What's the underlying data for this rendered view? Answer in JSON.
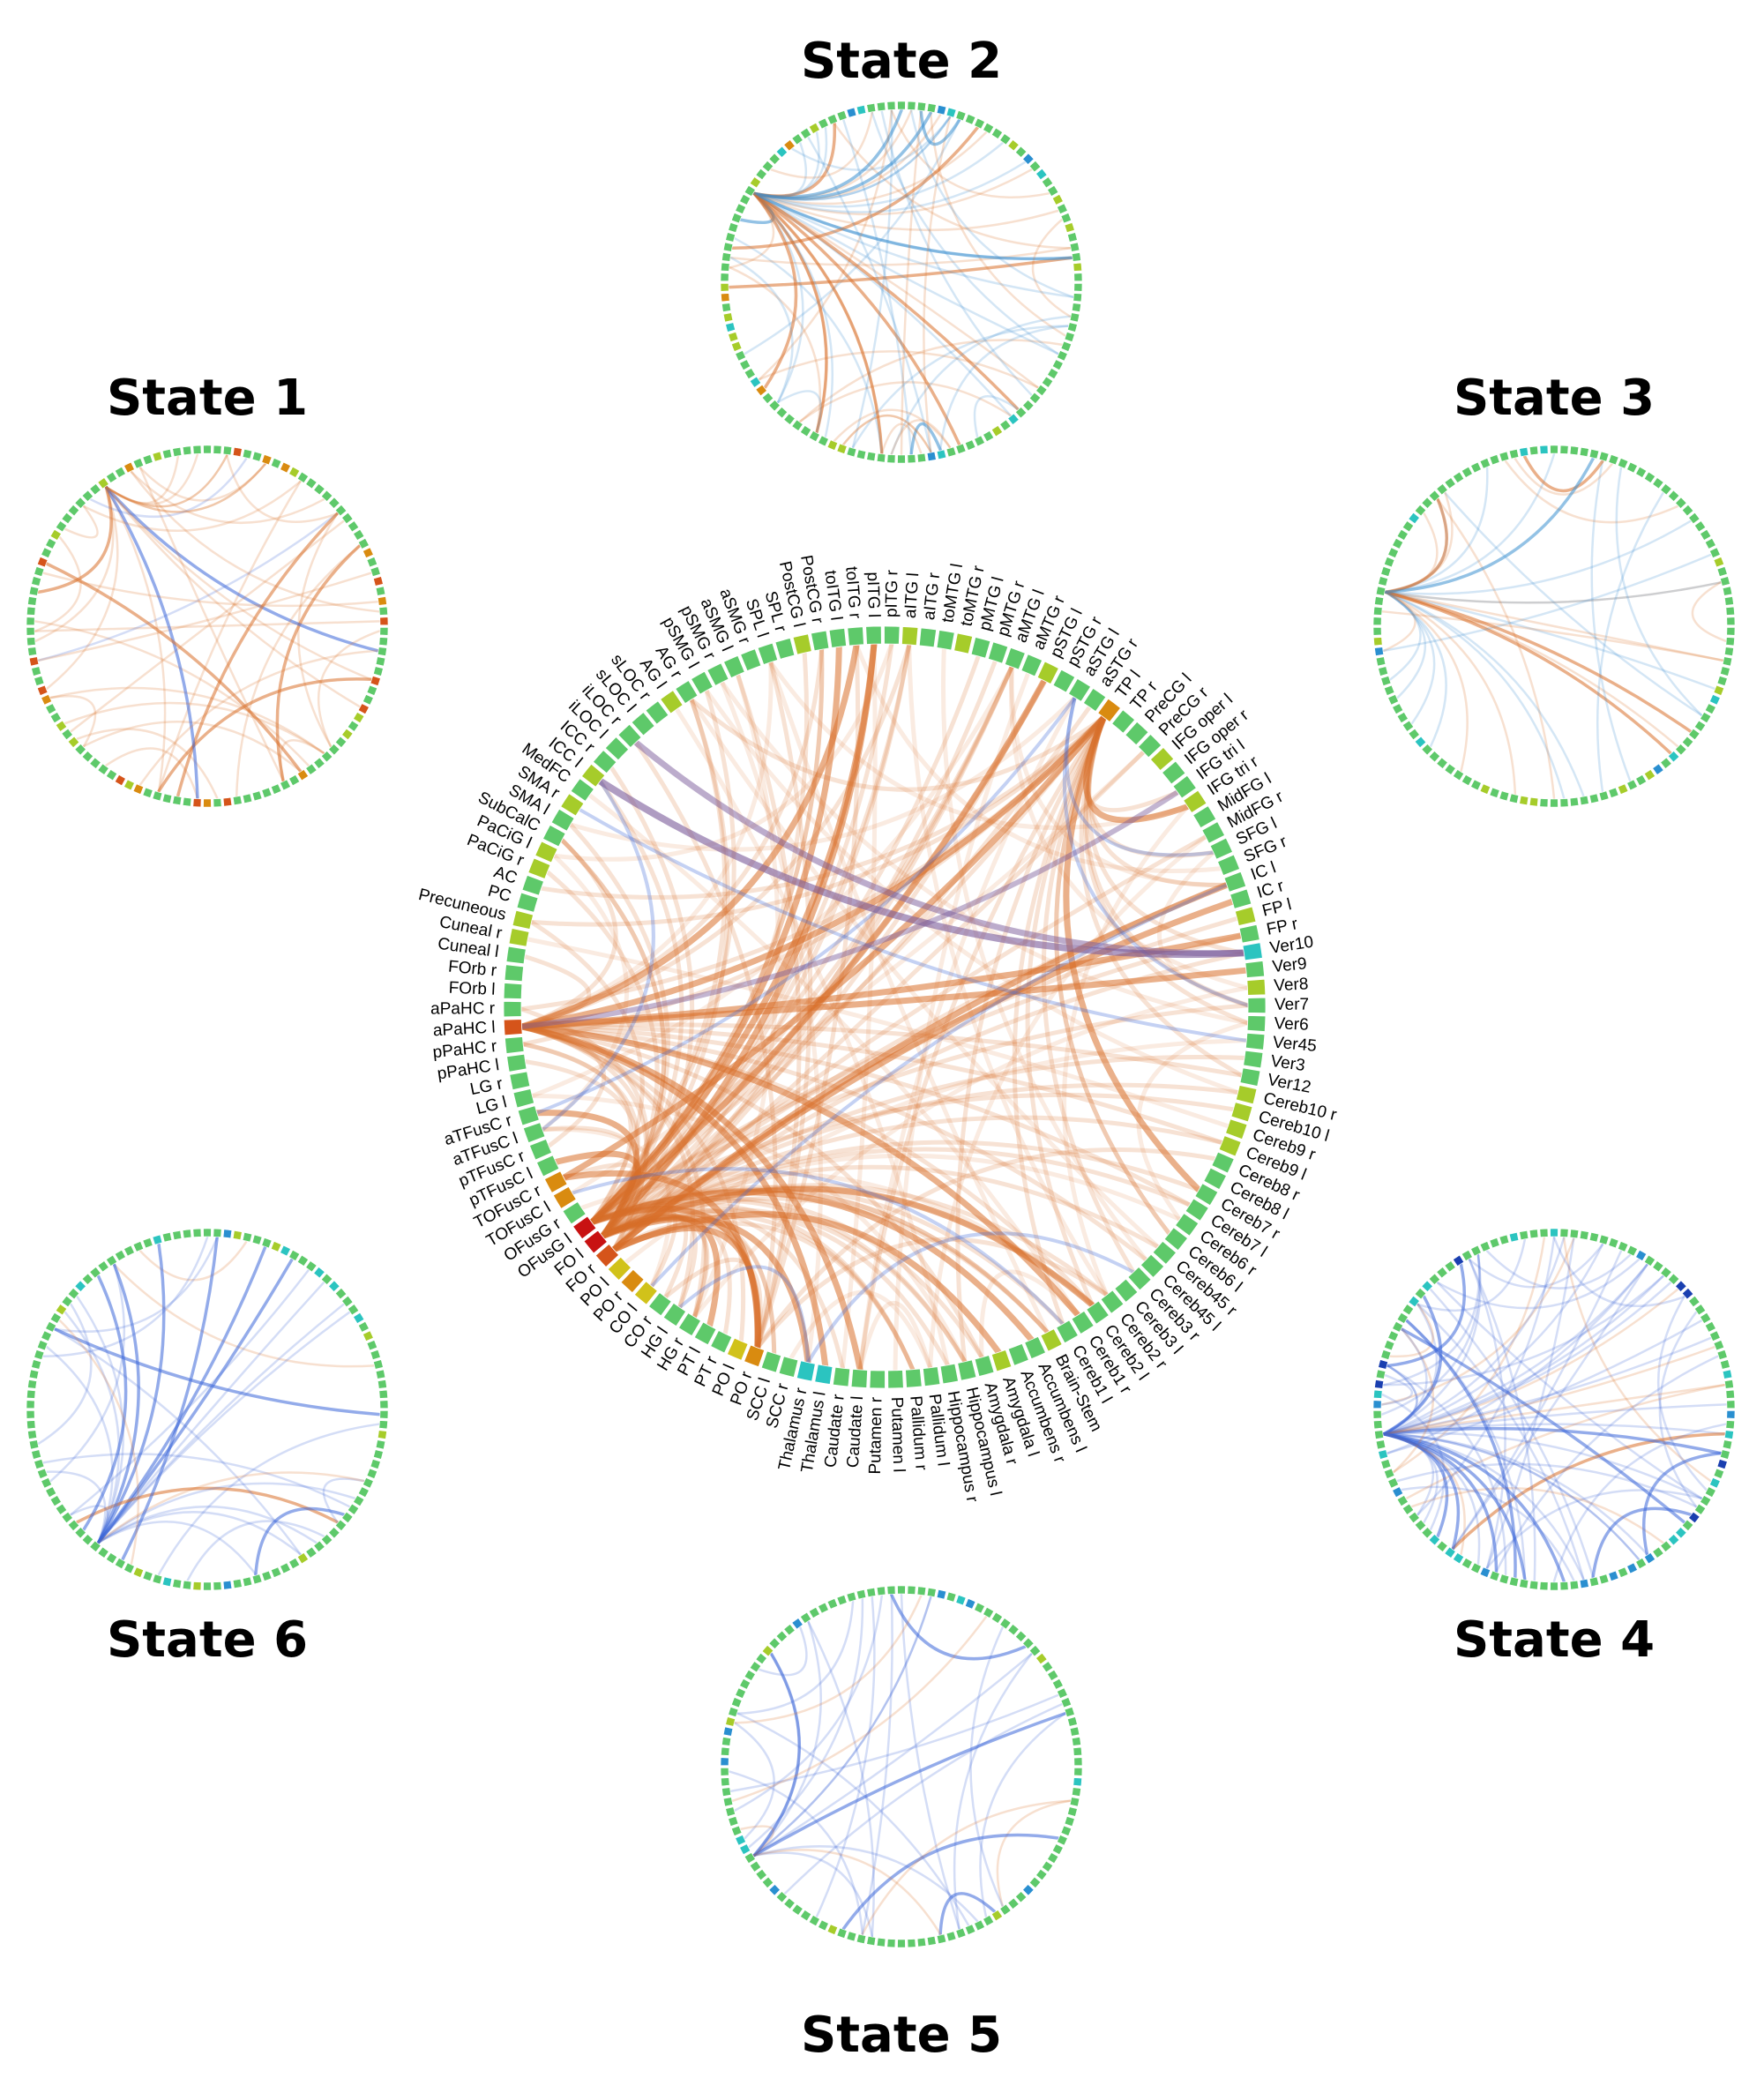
{
  "figure": {
    "states": [
      {
        "id": "state-1",
        "title": "State 1",
        "tone": "warm"
      },
      {
        "id": "state-2",
        "title": "State 2",
        "tone": "mixed"
      },
      {
        "id": "state-3",
        "title": "State 3",
        "tone": "mixed-light"
      },
      {
        "id": "state-4",
        "title": "State 4",
        "tone": "cool"
      },
      {
        "id": "state-5",
        "title": "State 5",
        "tone": "cool-light"
      },
      {
        "id": "state-6",
        "title": "State 6",
        "tone": "cool-light"
      }
    ],
    "regions": [
      "Ver10",
      "Ver9",
      "Ver8",
      "Ver7",
      "Ver6",
      "Ver45",
      "Ver3",
      "Ver12",
      "Cereb10 r",
      "Cereb10 l",
      "Cereb9 r",
      "Cereb9 l",
      "Cereb8 r",
      "Cereb8 l",
      "Cereb7 r",
      "Cereb7 l",
      "Cereb6 r",
      "Cereb6 l",
      "Cereb45 r",
      "Cereb45 l",
      "Cereb3 r",
      "Cereb3 l",
      "Cereb2 r",
      "Cereb2 l",
      "Cereb1 r",
      "Cereb1 l",
      "Brain-Stem",
      "Accumbens l",
      "Accumbens r",
      "Amygdala l",
      "Amygdala r",
      "Hippocampus l",
      "Hippocampus r",
      "Pallidum l",
      "Pallidum r",
      "Putamen l",
      "Putamen r",
      "Caudate l",
      "Caudate r",
      "Thalamus l",
      "Thalamus r",
      "SCC r",
      "SCC l",
      "PO r",
      "PO l",
      "PT r",
      "PT l",
      "HG r",
      "HG l",
      "CO r",
      "CO l",
      "PO r",
      "PO l",
      "FO r",
      "FO l",
      "OFusG l",
      "OFusG r",
      "TOFusC l",
      "TOFusC r",
      "pTFusC l",
      "pTFusC r",
      "aTFusC l",
      "aTFusC r",
      "LG l",
      "LG r",
      "pPaHC l",
      "pPaHC r",
      "aPaHC l",
      "aPaHC r",
      "FOrb l",
      "FOrb r",
      "Cuneal l",
      "Cuneal r",
      "Precuneous",
      "PC",
      "AC",
      "PaCiG r",
      "PaCiG l",
      "SubCalC",
      "SMA l",
      "SMA r",
      "MedFC",
      "ICC l",
      "ICC r",
      "iLOC l",
      "iLOC r",
      "sLOC l",
      "sLOC r",
      "AG l",
      "AG r",
      "pSMG l",
      "pSMG r",
      "aSMG l",
      "aSMG r",
      "SPL l",
      "SPL r",
      "PostCG l",
      "PostCG r",
      "toITG l",
      "toITG r",
      "pITG l",
      "pITG r",
      "aITG l",
      "aITG r",
      "toMTG l",
      "toMTG r",
      "pMTG l",
      "pMTG r",
      "aMTG l",
      "aMTG r",
      "pSTG l",
      "pSTG r",
      "aSTG l",
      "aSTG r",
      "TP l",
      "TP r",
      "PreCG l",
      "PreCG r",
      "IFG oper l",
      "IFG oper r",
      "IFG tri l",
      "IFG tri r",
      "MidFG l",
      "MidFG r",
      "SFG l",
      "SFG r",
      "IC l",
      "IC r",
      "FP l",
      "FP r"
    ],
    "colors": {
      "node_default": "#5ec96a",
      "node_palette": [
        "#1a3fb0",
        "#2a8fd0",
        "#2bc4c0",
        "#5ec96a",
        "#a6cc2a",
        "#d1c21a",
        "#d98b10",
        "#d5541a",
        "#c81212"
      ],
      "link_warm": "#d9702a",
      "link_cool": "#3a66d8",
      "link_purple": "#7a5a9a"
    }
  }
}
